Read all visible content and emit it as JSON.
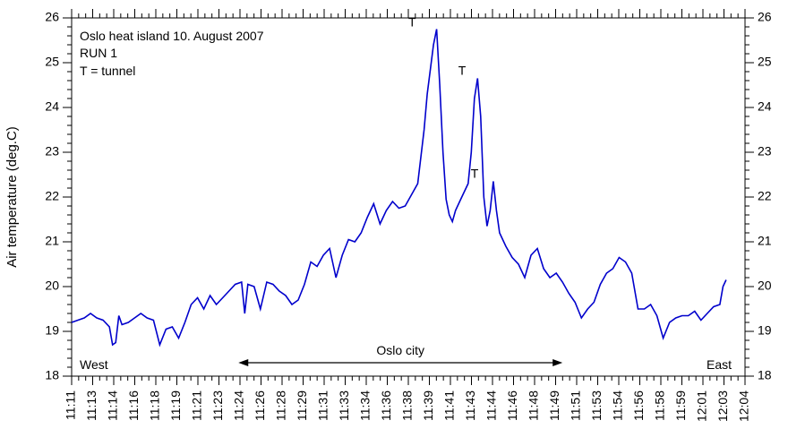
{
  "chart_data": {
    "type": "line",
    "title": "",
    "xlabel": "",
    "ylabel": "Air temperature (deg.C)",
    "ylim": [
      18,
      26
    ],
    "yticks": [
      18,
      19,
      20,
      21,
      22,
      23,
      24,
      25,
      26
    ],
    "x_ticklabels": [
      "11:11",
      "11:13",
      "11:14",
      "11:16",
      "11:18",
      "11:19",
      "11:21",
      "11:23",
      "11:24",
      "11:26",
      "11:28",
      "11:29",
      "11:31",
      "11:33",
      "11:34",
      "11:36",
      "11:38",
      "11:39",
      "11:41",
      "11:43",
      "11:44",
      "11:46",
      "11:48",
      "11:49",
      "11:51",
      "11:53",
      "11:54",
      "11:56",
      "11:58",
      "11:59",
      "12:01",
      "12:03",
      "12:04"
    ],
    "x_range_minutes": [
      "11:10:30",
      "12:04:00"
    ],
    "grid": false,
    "color": "#0000cc",
    "annotations": {
      "title_lines": [
        "Oslo heat island 10. August 2007",
        "RUN 1",
        "T = tunnel"
      ],
      "tunnel_marker": "T",
      "west": "West",
      "east": "East",
      "city": "Oslo city"
    },
    "city_span": [
      "11:23:45",
      "11:49:30"
    ],
    "tunnel_peaks": [
      {
        "time": "11:38:15",
        "value": 25.75
      },
      {
        "time": "11:41:00",
        "value": 24.65
      },
      {
        "time": "11:42:00",
        "value": 22.35
      }
    ],
    "series": [
      {
        "points": [
          [
            "11:10:30",
            19.2
          ],
          [
            "11:11:00",
            19.25
          ],
          [
            "11:11:30",
            19.3
          ],
          [
            "11:12:00",
            19.4
          ],
          [
            "11:12:30",
            19.3
          ],
          [
            "11:13:00",
            19.25
          ],
          [
            "11:13:30",
            19.1
          ],
          [
            "11:13:45",
            18.7
          ],
          [
            "11:14:00",
            18.75
          ],
          [
            "11:14:15",
            19.35
          ],
          [
            "11:14:30",
            19.15
          ],
          [
            "11:15:00",
            19.2
          ],
          [
            "11:15:30",
            19.3
          ],
          [
            "11:16:00",
            19.4
          ],
          [
            "11:16:30",
            19.3
          ],
          [
            "11:17:00",
            19.25
          ],
          [
            "11:17:30",
            18.7
          ],
          [
            "11:18:00",
            19.05
          ],
          [
            "11:18:30",
            19.1
          ],
          [
            "11:19:00",
            18.85
          ],
          [
            "11:19:30",
            19.2
          ],
          [
            "11:20:00",
            19.6
          ],
          [
            "11:20:30",
            19.75
          ],
          [
            "11:21:00",
            19.5
          ],
          [
            "11:21:30",
            19.8
          ],
          [
            "11:22:00",
            19.6
          ],
          [
            "11:22:30",
            19.75
          ],
          [
            "11:23:00",
            19.9
          ],
          [
            "11:23:30",
            20.05
          ],
          [
            "11:24:00",
            20.1
          ],
          [
            "11:24:15",
            19.4
          ],
          [
            "11:24:30",
            20.05
          ],
          [
            "11:25:00",
            20.0
          ],
          [
            "11:25:30",
            19.5
          ],
          [
            "11:26:00",
            20.1
          ],
          [
            "11:26:30",
            20.05
          ],
          [
            "11:27:00",
            19.9
          ],
          [
            "11:27:30",
            19.8
          ],
          [
            "11:28:00",
            19.6
          ],
          [
            "11:28:30",
            19.7
          ],
          [
            "11:29:00",
            20.05
          ],
          [
            "11:29:30",
            20.55
          ],
          [
            "11:30:00",
            20.45
          ],
          [
            "11:30:30",
            20.7
          ],
          [
            "11:31:00",
            20.85
          ],
          [
            "11:31:30",
            20.2
          ],
          [
            "11:32:00",
            20.7
          ],
          [
            "11:32:30",
            21.05
          ],
          [
            "11:33:00",
            21.0
          ],
          [
            "11:33:30",
            21.2
          ],
          [
            "11:34:00",
            21.55
          ],
          [
            "11:34:30",
            21.85
          ],
          [
            "11:35:00",
            21.4
          ],
          [
            "11:35:30",
            21.7
          ],
          [
            "11:36:00",
            21.9
          ],
          [
            "11:36:30",
            21.75
          ],
          [
            "11:37:00",
            21.8
          ],
          [
            "11:37:30",
            22.05
          ],
          [
            "11:38:00",
            22.3
          ],
          [
            "11:38:30",
            23.5
          ],
          [
            "11:38:45",
            24.3
          ],
          [
            "11:39:15",
            25.4
          ],
          [
            "11:39:30",
            25.75
          ],
          [
            "11:39:45",
            24.5
          ],
          [
            "11:40:00",
            23.0
          ],
          [
            "11:40:15",
            21.95
          ],
          [
            "11:40:30",
            21.6
          ],
          [
            "11:40:45",
            21.45
          ],
          [
            "11:41:00",
            21.7
          ],
          [
            "11:41:30",
            22.0
          ],
          [
            "11:42:00",
            22.3
          ],
          [
            "11:42:15",
            23.0
          ],
          [
            "11:42:30",
            24.2
          ],
          [
            "11:42:45",
            24.65
          ],
          [
            "11:43:00",
            23.8
          ],
          [
            "11:43:15",
            22.0
          ],
          [
            "11:43:30",
            21.35
          ],
          [
            "11:43:45",
            21.7
          ],
          [
            "11:44:00",
            22.35
          ],
          [
            "11:44:15",
            21.7
          ],
          [
            "11:44:30",
            21.2
          ],
          [
            "11:45:00",
            20.9
          ],
          [
            "11:45:30",
            20.65
          ],
          [
            "11:46:00",
            20.5
          ],
          [
            "11:46:30",
            20.2
          ],
          [
            "11:47:00",
            20.7
          ],
          [
            "11:47:30",
            20.85
          ],
          [
            "11:48:00",
            20.4
          ],
          [
            "11:48:30",
            20.2
          ],
          [
            "11:49:00",
            20.3
          ],
          [
            "11:49:30",
            20.1
          ],
          [
            "11:50:00",
            19.85
          ],
          [
            "11:50:30",
            19.65
          ],
          [
            "11:51:00",
            19.3
          ],
          [
            "11:51:30",
            19.5
          ],
          [
            "11:52:00",
            19.65
          ],
          [
            "11:52:30",
            20.05
          ],
          [
            "11:53:00",
            20.3
          ],
          [
            "11:53:30",
            20.4
          ],
          [
            "11:54:00",
            20.65
          ],
          [
            "11:54:30",
            20.55
          ],
          [
            "11:55:00",
            20.3
          ],
          [
            "11:55:30",
            19.5
          ],
          [
            "11:56:00",
            19.5
          ],
          [
            "11:56:30",
            19.6
          ],
          [
            "11:57:00",
            19.35
          ],
          [
            "11:57:30",
            18.85
          ],
          [
            "11:58:00",
            19.2
          ],
          [
            "11:58:30",
            19.3
          ],
          [
            "11:59:00",
            19.35
          ],
          [
            "11:59:30",
            19.35
          ],
          [
            "12:00:00",
            19.45
          ],
          [
            "12:00:30",
            19.25
          ],
          [
            "12:01:00",
            19.4
          ],
          [
            "12:01:30",
            19.55
          ],
          [
            "12:02:00",
            19.6
          ],
          [
            "12:02:15",
            20.0
          ],
          [
            "12:02:30",
            20.15
          ]
        ]
      }
    ]
  }
}
